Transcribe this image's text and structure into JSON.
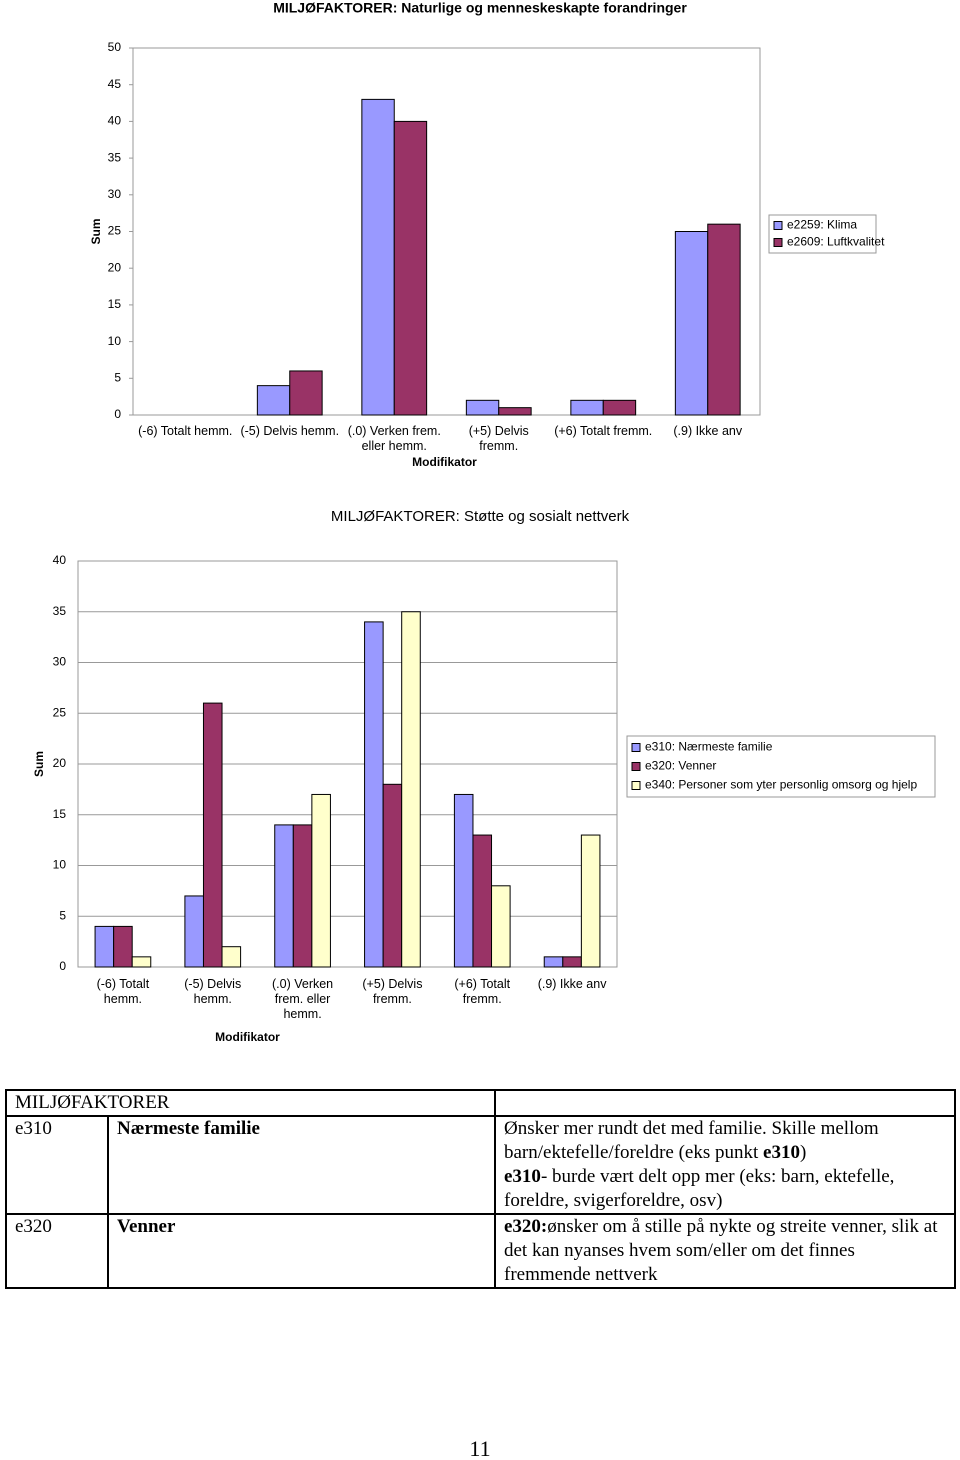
{
  "chart_data": [
    {
      "type": "bar",
      "title": "MILJØFAKTORER: Naturlige og menneskeskapte forandringer",
      "y_label": "Sum",
      "x_label": "Modifikator",
      "categories": [
        "(-6) Totalt hemm.",
        "(-5) Delvis hemm.",
        "(.0) Verken frem. eller hemm.",
        "(+5) Delvis fremm.",
        "(+6) Totalt fremm.",
        "(.9) Ikke anv"
      ],
      "series": [
        {
          "name": "e2259: Klima",
          "color": "#9999ff",
          "values": [
            0,
            4,
            43,
            2,
            2,
            25
          ]
        },
        {
          "name": "e2609: Luftkvalitet",
          "color": "#993366",
          "values": [
            0,
            6,
            40,
            1,
            2,
            26
          ]
        }
      ],
      "ylim": [
        0,
        50
      ],
      "yticks": [
        0,
        5,
        10,
        15,
        20,
        25,
        30,
        35,
        40,
        45,
        50
      ],
      "grid": false,
      "legend": "right"
    },
    {
      "type": "bar",
      "title": "MILJØFAKTORER: Støtte og sosialt nettverk",
      "y_label": "Sum",
      "x_label": "Modifikator",
      "categories": [
        "(-6) Totalt hemm.",
        "(-5) Delvis hemm.",
        "(.0) Verken frem. eller hemm.",
        "(+5) Delvis fremm.",
        "(+6) Totalt fremm.",
        "(.9) Ikke anv"
      ],
      "series": [
        {
          "name": "e310: Nærmeste familie",
          "color": "#9999ff",
          "values": [
            4,
            7,
            14,
            34,
            17,
            1
          ]
        },
        {
          "name": "e320: Venner",
          "color": "#993366",
          "values": [
            4,
            26,
            14,
            18,
            13,
            1
          ]
        },
        {
          "name": "e340: Personer som yter personlig omsorg og hjelp",
          "color": "#ffffcc",
          "values": [
            1,
            2,
            17,
            35,
            8,
            13
          ]
        }
      ],
      "ylim": [
        0,
        40
      ],
      "yticks": [
        0,
        5,
        10,
        15,
        20,
        25,
        30,
        35,
        40
      ],
      "grid": true,
      "legend": "right"
    }
  ],
  "table": {
    "header": "MILJØFAKTORER",
    "rows": [
      {
        "code": "e310",
        "name": "Nærmeste familie",
        "comment": [
          [
            {
              "text": "Ønsker mer rundt det med familie. Skille mellom barn/ektefelle/foreldre (eks punkt "
            },
            {
              "text": "e310",
              "bold": true
            },
            {
              "text": ")"
            }
          ],
          [
            {
              "text": "e310",
              "bold": true
            },
            {
              "text": "- burde vært delt opp mer (eks: barn, ektefelle, foreldre, svigerforeldre, osv)"
            }
          ]
        ]
      },
      {
        "code": "e320",
        "name": "Venner",
        "comment": [
          [
            {
              "text": "e320:",
              "bold": true
            },
            {
              "text": "ønsker om å stille på nykte og streite venner, slik at det kan nyanses hvem som/eller om det finnes fremmende nettverk"
            }
          ]
        ]
      }
    ]
  },
  "page_number": "11"
}
